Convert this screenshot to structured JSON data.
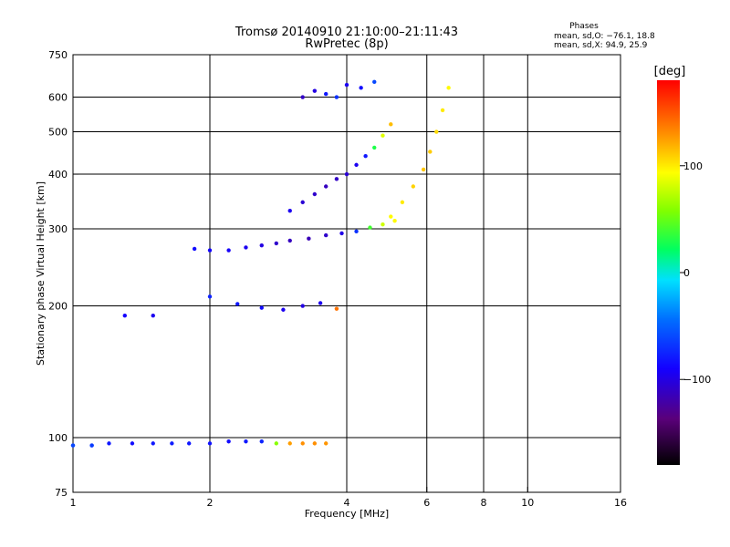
{
  "chart_data": {
    "type": "scatter",
    "title": "Tromsø 20140910 21:10:00–21:11:43",
    "subtitle": "RwPretec (8p)",
    "xlabel": "Frequency [MHz]",
    "ylabel": "Stationary phase Virtual Height [km]",
    "x_scale": "log",
    "y_scale": "log",
    "xlim": [
      1,
      16
    ],
    "ylim": [
      75,
      750
    ],
    "x_ticks": [
      1,
      2,
      4,
      6,
      8,
      10,
      16
    ],
    "x_tick_labels": [
      "1",
      "2",
      "4",
      "6",
      "8",
      "10",
      "16"
    ],
    "x_grid": [
      2,
      4,
      6,
      8,
      10
    ],
    "y_ticks": [
      75,
      100,
      200,
      300,
      400,
      500,
      600,
      750
    ],
    "y_tick_labels": [
      "75",
      "100",
      "200",
      "300",
      "400",
      "500",
      "600",
      "750"
    ],
    "y_grid": [
      100,
      200,
      300,
      400,
      500,
      600
    ],
    "grid": true,
    "stats": {
      "heading": "Phases",
      "line_o": "mean, sd,O: −76.1, 18.8",
      "line_x": "mean, sd,X:  94.9, 25.9"
    },
    "colorbar": {
      "label": "[deg]",
      "range": [
        -180,
        180
      ],
      "ticks": [
        100,
        0,
        -100
      ],
      "tick_labels": [
        "100",
        "0",
        "−100"
      ]
    },
    "traces": [
      {
        "x": [
          1.0,
          1.1,
          1.2,
          1.35,
          1.5,
          1.65,
          1.8,
          2.0,
          2.2,
          2.4,
          2.6,
          2.8,
          3.0,
          3.2,
          3.4,
          3.6
        ],
        "y": [
          96,
          96,
          97,
          97,
          97,
          97,
          97,
          97,
          98,
          98,
          98,
          97,
          97,
          97,
          97,
          97
        ],
        "phase": [
          -75,
          -72,
          -80,
          -85,
          -80,
          -78,
          -80,
          -82,
          -85,
          -80,
          -75,
          60,
          125,
          130,
          130,
          128
        ]
      },
      {
        "x": [
          1.85,
          2.0,
          2.2,
          2.4,
          2.6,
          2.8,
          3.0,
          3.3,
          3.6,
          3.9,
          4.2,
          4.5,
          4.8,
          5.1
        ],
        "y": [
          270,
          268,
          268,
          272,
          275,
          278,
          282,
          285,
          290,
          293,
          296,
          302,
          307,
          313
        ],
        "phase": [
          -85,
          -88,
          -92,
          -95,
          -100,
          -108,
          -112,
          -115,
          -108,
          -98,
          -70,
          40,
          80,
          95
        ]
      },
      {
        "x": [
          2.0,
          2.3,
          2.6,
          2.9,
          3.2,
          3.5,
          3.8
        ],
        "y": [
          210,
          202,
          198,
          196,
          200,
          203,
          197
        ],
        "phase": [
          -75,
          -80,
          -85,
          -95,
          -100,
          -95,
          140
        ]
      },
      {
        "x": [
          3.0,
          3.2,
          3.4,
          3.6,
          3.8,
          4.0,
          4.2,
          4.4,
          4.6,
          4.8,
          5.0
        ],
        "y": [
          330,
          345,
          360,
          375,
          390,
          400,
          420,
          440,
          460,
          490,
          520
        ],
        "phase": [
          -95,
          -105,
          -108,
          -112,
          -110,
          -105,
          -95,
          -80,
          30,
          85,
          115
        ]
      },
      {
        "x": [
          5.0,
          5.3,
          5.6,
          5.9,
          6.1,
          6.3,
          6.5,
          6.7
        ],
        "y": [
          320,
          345,
          375,
          410,
          450,
          500,
          560,
          630
        ],
        "phase": [
          95,
          100,
          108,
          112,
          110,
          105,
          100,
          95
        ]
      },
      {
        "x": [
          1.0,
          1.1,
          1.3,
          1.5
        ],
        "y": [
          96,
          96,
          190,
          190
        ],
        "phase": [
          -60,
          -65,
          -90,
          -95
        ]
      },
      {
        "x": [
          3.2,
          3.4,
          3.6,
          3.8,
          4.0,
          4.3,
          4.6
        ],
        "y": [
          600,
          620,
          610,
          600,
          640,
          630,
          650
        ],
        "phase": [
          -110,
          -100,
          -80,
          -70,
          -95,
          -85,
          -60
        ]
      }
    ]
  }
}
